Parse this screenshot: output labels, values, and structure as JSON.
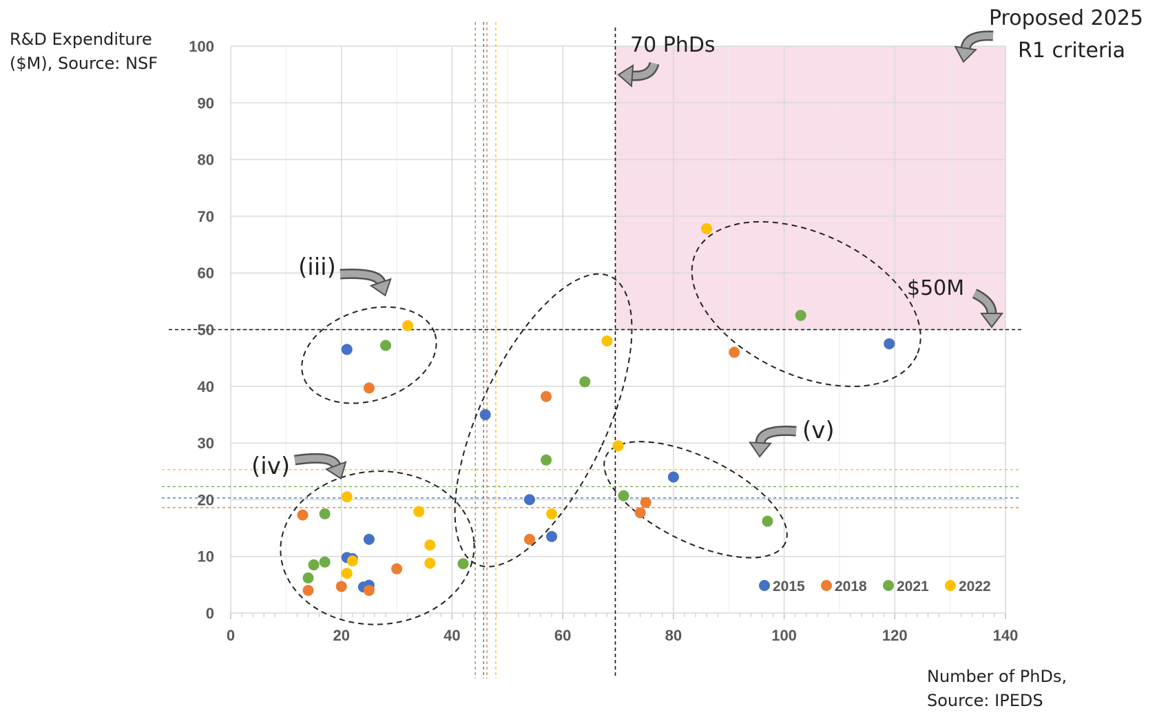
{
  "chart_data": {
    "type": "scatter",
    "title": "",
    "xlabel_lines": [
      "Number of PhDs,",
      "Source: IPEDS"
    ],
    "ylabel_lines": [
      "R&D Expenditure",
      "($M), Source: NSF"
    ],
    "xlim": [
      0,
      140
    ],
    "ylim": [
      0,
      100
    ],
    "xticks": [
      0,
      20,
      40,
      60,
      80,
      100,
      120,
      140
    ],
    "yticks": [
      0,
      10,
      20,
      30,
      40,
      50,
      60,
      70,
      80,
      90,
      100
    ],
    "grid": true,
    "legend_position": "bottom-right",
    "series": [
      {
        "name": "2015",
        "color": "#4472C4",
        "x": [
          21,
          21,
          22,
          25,
          24,
          25,
          46,
          54,
          58,
          80,
          119
        ],
        "y": [
          46.5,
          9.8,
          9.6,
          13,
          4.6,
          4.9,
          35,
          20,
          13.5,
          24,
          47.5
        ],
        "threshold_x": 45.7,
        "threshold_y": 20.3
      },
      {
        "name": "2018",
        "color": "#ED7D31",
        "x": [
          13,
          14,
          20,
          25,
          25,
          30,
          54,
          57,
          74,
          75,
          91
        ],
        "y": [
          17.3,
          4,
          4.7,
          4,
          39.7,
          7.8,
          13,
          38.2,
          17.7,
          19.5,
          46
        ],
        "threshold_x": 46.3,
        "threshold_y": 18.6
      },
      {
        "name": "2021",
        "color": "#70AD47",
        "x": [
          14,
          15,
          17,
          17,
          28,
          42,
          57,
          64,
          71,
          97,
          103
        ],
        "y": [
          6.2,
          8.5,
          17.5,
          9,
          47.2,
          8.7,
          27,
          40.8,
          20.7,
          16.2,
          52.5
        ],
        "threshold_x": 44.2,
        "threshold_y": 22.3
      },
      {
        "name": "2022",
        "color": "#FFC000",
        "x": [
          21,
          21,
          22,
          32,
          34,
          36,
          36,
          58,
          68,
          70,
          86
        ],
        "y": [
          20.5,
          7,
          9.2,
          50.7,
          17.9,
          12,
          8.8,
          17.5,
          48,
          29.5,
          67.8
        ],
        "threshold_x": 47.9,
        "threshold_y": 25.3
      }
    ],
    "reference_lines": {
      "x": 69.5,
      "y": 50
    },
    "proposed_region": {
      "label_lines": [
        "Proposed 2025",
        "R1 criteria"
      ],
      "x_range": [
        69.5,
        140
      ],
      "y_range": [
        50,
        100
      ],
      "color": "#F8DFEA"
    },
    "annotations": [
      {
        "text": "70 PhDs"
      },
      {
        "text": "$50M"
      },
      {
        "text": "(iii)"
      },
      {
        "text": "(iv)"
      },
      {
        "text": "(v)"
      }
    ]
  }
}
